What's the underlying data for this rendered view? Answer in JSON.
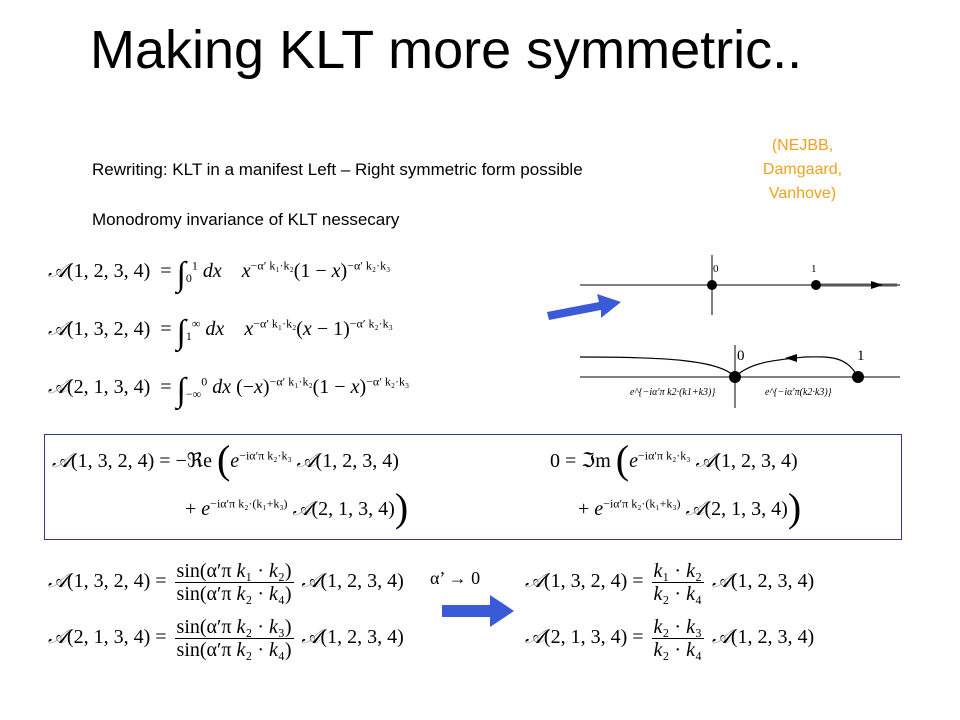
{
  "slide": {
    "title": "Making KLT more symmetric..",
    "rewriting_note": "Rewriting: KLT in a manifest Left – Right symmetric form possible",
    "monodromy_note": "Monodromy invariance of KLT nessecary",
    "citation": "(NEJBB, Damgaard, Vanhove)"
  },
  "integrals": [
    {
      "lhs": "A(1, 2, 3, 4)",
      "lower": "0",
      "upper": "1",
      "rhs": "dx   x^{−α′ k1·k2}(1 − x)^{−α′ k2·k3}"
    },
    {
      "lhs": "A(1, 3, 2, 4)",
      "lower": "1",
      "upper": "∞",
      "rhs": "dx   x^{−α′ k1·k2}(x − 1)^{−α′ k2·k3}"
    },
    {
      "lhs": "A(2, 1, 3, 4)",
      "lower": "−∞",
      "upper": "0",
      "rhs": "dx (−x)^{−α′ k1·k2}(1 − x)^{−α′ k2·k3}"
    }
  ],
  "contours": {
    "top": {
      "label_zero": "0",
      "label_one": "1"
    },
    "bottom": {
      "label_zero": "0",
      "label_one": "1",
      "phase_left": "e^{−iα′π k2·(k1+k3)}",
      "phase_right": "e^{−iα′π(k2·k3)}"
    }
  },
  "monodromy_box": {
    "left_lhs": "A(1, 3, 2, 4) = −Re",
    "right_lhs": "0 = Im",
    "term1": "e^{−iα′π k2·k3} A(1, 2, 3, 4)",
    "term2": "+ e^{−iα′π k2·(k1+k3)} A(2, 1, 3, 4)"
  },
  "klt_relations": [
    {
      "lhs": "A(1, 3, 2, 4) =",
      "num": "sin(α′π k1 · k2)",
      "den": "sin(α′π k2 · k4)",
      "amp": "A(1, 2, 3, 4)"
    },
    {
      "lhs": "A(2, 1, 3, 4) =",
      "num": "sin(α′π k2 · k3)",
      "den": "sin(α′π k2 · k4)",
      "amp": "A(1, 2, 3, 4)"
    }
  ],
  "limit_label": "α’ → 0",
  "field_theory_relations": [
    {
      "lhs": "A(1, 3, 2, 4) =",
      "num": "k1 · k2",
      "den": "k2 · k4",
      "amp": "A(1, 2, 3, 4)"
    },
    {
      "lhs": "A(2, 1, 3, 4) =",
      "num": "k2 · k3",
      "den": "k2 · k4",
      "amp": "A(1, 2, 3, 4)"
    }
  ],
  "colors": {
    "arrow": "#3a5ad8",
    "citation": "#f0a020",
    "box_border": "#2e3a8c"
  }
}
